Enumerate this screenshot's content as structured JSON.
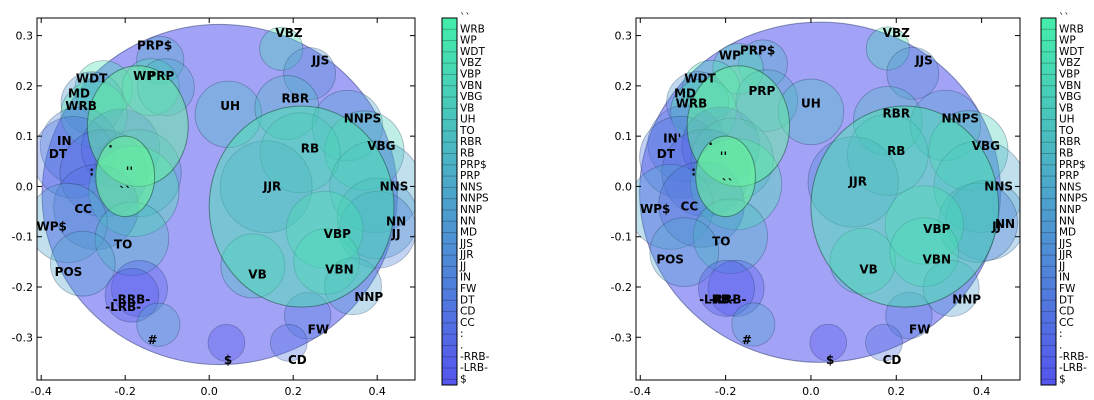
{
  "chart_data": [
    {
      "type": "scatter",
      "title": "",
      "xlabel": "",
      "ylabel": "",
      "xlim": [
        -0.41,
        0.49
      ],
      "ylim": [
        -0.385,
        0.335
      ],
      "xticks": [
        "-0.4",
        "-0.2",
        "0.0",
        "0.2",
        "0.4"
      ],
      "yticks": [
        "0.3",
        "0.2",
        "0.1",
        "0.0",
        "-0.1",
        "-0.2",
        "-0.3"
      ],
      "grid": false,
      "colorbar_labels": [
        "``",
        "WRB",
        "WP",
        "WDT",
        "VBZ",
        "VBP",
        "VBN",
        "VBG",
        "VB",
        "UH",
        "TO",
        "RBR",
        "RB",
        "PRP$",
        "PRP",
        "NNS",
        "NNPS",
        "NNP",
        "NN",
        "MD",
        "JJS",
        "JJR",
        "JJ",
        "IN",
        "FW",
        "DT",
        "CD",
        "CC",
        ":",
        ".",
        "-RRB-",
        "-LRB-",
        "$"
      ],
      "colors": {
        "low": "#5555ee",
        "high": "#44eeaa"
      },
      "points": [
        {
          "label": "PRP$",
          "x": -0.13,
          "y": 0.28
        },
        {
          "label": "VBZ",
          "x": 0.19,
          "y": 0.305
        },
        {
          "label": "JJS",
          "x": 0.265,
          "y": 0.25
        },
        {
          "label": "WDT",
          "x": -0.28,
          "y": 0.215
        },
        {
          "label": "WP",
          "x": -0.155,
          "y": 0.22
        },
        {
          "label": "PRP",
          "x": -0.115,
          "y": 0.22
        },
        {
          "label": "MD",
          "x": -0.31,
          "y": 0.185
        },
        {
          "label": "WRB",
          "x": -0.305,
          "y": 0.16
        },
        {
          "label": "UH",
          "x": 0.05,
          "y": 0.16
        },
        {
          "label": "RBR",
          "x": 0.205,
          "y": 0.175
        },
        {
          "label": "NNPS",
          "x": 0.365,
          "y": 0.135
        },
        {
          "label": "IN",
          "x": -0.345,
          "y": 0.09
        },
        {
          "label": "VBG",
          "x": 0.41,
          "y": 0.08
        },
        {
          "label": "RB",
          "x": 0.24,
          "y": 0.075
        },
        {
          "label": "DT",
          "x": -0.36,
          "y": 0.065
        },
        {
          "label": ".",
          "x": -0.235,
          "y": 0.085
        },
        {
          "label": "''",
          "x": -0.19,
          "y": 0.03
        },
        {
          "label": ":",
          "x": -0.28,
          "y": 0.03
        },
        {
          "label": "``",
          "x": -0.2,
          "y": -0.01
        },
        {
          "label": "JJR",
          "x": 0.15,
          "y": 0.0
        },
        {
          "label": "NNS",
          "x": 0.44,
          "y": 0.0
        },
        {
          "label": "CC",
          "x": -0.3,
          "y": -0.045
        },
        {
          "label": "WP$",
          "x": -0.375,
          "y": -0.08
        },
        {
          "label": "NN",
          "x": 0.445,
          "y": -0.07
        },
        {
          "label": "JJ",
          "x": 0.445,
          "y": -0.095
        },
        {
          "label": "VBP",
          "x": 0.305,
          "y": -0.095
        },
        {
          "label": "TO",
          "x": -0.205,
          "y": -0.115
        },
        {
          "label": "POS",
          "x": -0.335,
          "y": -0.17
        },
        {
          "label": "VB",
          "x": 0.115,
          "y": -0.175
        },
        {
          "label": "VBN",
          "x": 0.31,
          "y": -0.165
        },
        {
          "label": "-RRB-",
          "x": -0.185,
          "y": -0.225
        },
        {
          "label": "NNP",
          "x": 0.38,
          "y": -0.22
        },
        {
          "label": "-LRB-",
          "x": -0.205,
          "y": -0.24
        },
        {
          "label": "#",
          "x": -0.135,
          "y": -0.305
        },
        {
          "label": "FW",
          "x": 0.26,
          "y": -0.285
        },
        {
          "label": "$",
          "x": 0.045,
          "y": -0.345
        },
        {
          "label": "CD",
          "x": 0.21,
          "y": -0.345
        }
      ]
    },
    {
      "type": "scatter",
      "title": "",
      "xlabel": "",
      "ylabel": "",
      "xlim": [
        -0.41,
        0.49
      ],
      "ylim": [
        -0.385,
        0.335
      ],
      "xticks": [
        "-0.4",
        "-0.2",
        "0.0",
        "0.2",
        "0.4"
      ],
      "yticks": [
        "0.3",
        "0.2",
        "0.1",
        "0.0",
        "-0.1",
        "-0.2",
        "-0.3"
      ],
      "grid": false,
      "colorbar_labels": [
        "``",
        "WRB",
        "WP",
        "WDT",
        "VBZ",
        "VBP",
        "VBN",
        "VBG",
        "VB",
        "UH",
        "TO",
        "RBR",
        "RB",
        "PRP$",
        "PRP",
        "NNS",
        "NNPS",
        "NNP",
        "NN",
        "MD",
        "JJS",
        "JJR",
        "JJ",
        "IN",
        "FW",
        "DT",
        "CD",
        "CC",
        ":",
        ".",
        "-RRB-",
        "-LRB-",
        "$"
      ],
      "colors": {
        "low": "#5555ee",
        "high": "#44eeaa"
      },
      "points": [
        {
          "label": "VBZ",
          "x": 0.2,
          "y": 0.305
        },
        {
          "label": "PRP$",
          "x": -0.125,
          "y": 0.27
        },
        {
          "label": "WP",
          "x": -0.19,
          "y": 0.26
        },
        {
          "label": "JJS",
          "x": 0.265,
          "y": 0.25
        },
        {
          "label": "WDT",
          "x": -0.26,
          "y": 0.215
        },
        {
          "label": "MD",
          "x": -0.295,
          "y": 0.185
        },
        {
          "label": "PRP",
          "x": -0.115,
          "y": 0.19
        },
        {
          "label": "WRB",
          "x": -0.28,
          "y": 0.165
        },
        {
          "label": "UH",
          "x": 0.0,
          "y": 0.165
        },
        {
          "label": "RBR",
          "x": 0.2,
          "y": 0.145
        },
        {
          "label": "NNPS",
          "x": 0.35,
          "y": 0.135
        },
        {
          "label": "IN'",
          "x": -0.325,
          "y": 0.095
        },
        {
          "label": "VBG",
          "x": 0.41,
          "y": 0.08
        },
        {
          "label": "RB",
          "x": 0.2,
          "y": 0.07
        },
        {
          "label": "DT",
          "x": -0.34,
          "y": 0.065
        },
        {
          "label": ".",
          "x": -0.235,
          "y": 0.09
        },
        {
          "label": "''",
          "x": -0.205,
          "y": 0.06
        },
        {
          "label": ":",
          "x": -0.275,
          "y": 0.03
        },
        {
          "label": "``",
          "x": -0.195,
          "y": 0.005
        },
        {
          "label": "JJR",
          "x": 0.11,
          "y": 0.01
        },
        {
          "label": "NNS",
          "x": 0.44,
          "y": 0.0
        },
        {
          "label": "WP$",
          "x": -0.365,
          "y": -0.045
        },
        {
          "label": "CC",
          "x": -0.285,
          "y": -0.04
        },
        {
          "label": "NN",
          "x": 0.455,
          "y": -0.075
        },
        {
          "label": "JJ",
          "x": 0.435,
          "y": -0.08
        },
        {
          "label": "VBP",
          "x": 0.295,
          "y": -0.085
        },
        {
          "label": "TO",
          "x": -0.21,
          "y": -0.11
        },
        {
          "label": "POS",
          "x": -0.33,
          "y": -0.145
        },
        {
          "label": "VB",
          "x": 0.135,
          "y": -0.165
        },
        {
          "label": "VBN",
          "x": 0.295,
          "y": -0.145
        },
        {
          "label": "-RRB-",
          "x": -0.195,
          "y": -0.225
        },
        {
          "label": "-LRB-",
          "x": -0.22,
          "y": -0.225
        },
        {
          "label": "NNP",
          "x": 0.365,
          "y": -0.225
        },
        {
          "label": "#",
          "x": -0.15,
          "y": -0.305
        },
        {
          "label": "FW",
          "x": 0.255,
          "y": -0.285
        },
        {
          "label": "$",
          "x": 0.045,
          "y": -0.345
        },
        {
          "label": "CD",
          "x": 0.19,
          "y": -0.345
        }
      ]
    }
  ]
}
